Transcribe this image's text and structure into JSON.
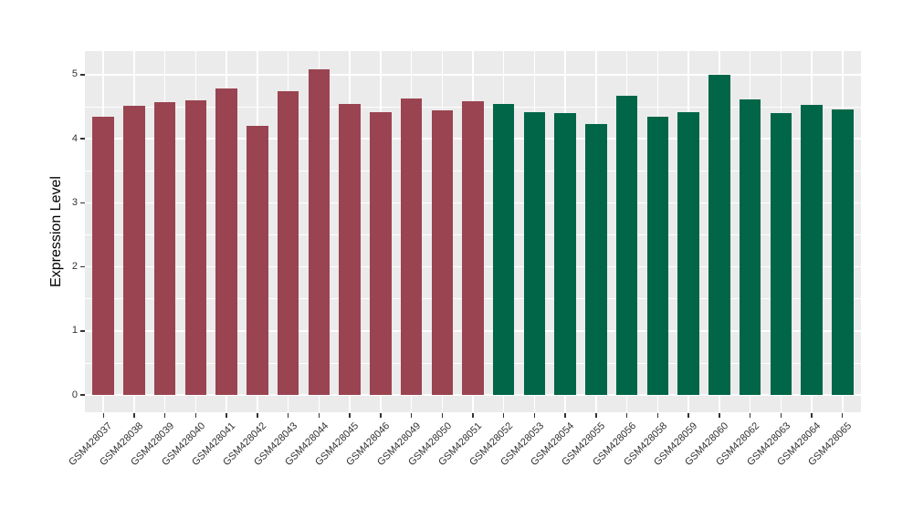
{
  "chart_data": {
    "type": "bar",
    "title": "",
    "xlabel": "",
    "ylabel": "Expression Level",
    "ylim": [
      0,
      5
    ],
    "display_range": {
      "top": 5.37,
      "bottom": -0.27
    },
    "yticks": [
      0,
      1,
      2,
      3,
      4,
      5
    ],
    "grid": "on",
    "legend": "none",
    "panel_bg": "#EBEBEB",
    "grid_color": "#FFFFFF",
    "tick_color": "#333333",
    "series": [
      {
        "name": "series-1",
        "color": "#9A4451",
        "categories": [
          "GSM428037",
          "GSM428038",
          "GSM428039",
          "GSM428040",
          "GSM428041",
          "GSM428042",
          "GSM428043",
          "GSM428044",
          "GSM428045",
          "GSM428046",
          "GSM428049",
          "GSM428050",
          "GSM428051"
        ],
        "values": [
          4.34,
          4.51,
          4.57,
          4.6,
          4.78,
          4.2,
          4.75,
          5.08,
          4.54,
          4.41,
          4.63,
          4.45,
          4.59
        ]
      },
      {
        "name": "series-2",
        "color": "#006647",
        "categories": [
          "GSM428052",
          "GSM428053",
          "GSM428054",
          "GSM428055",
          "GSM428056",
          "GSM428058",
          "GSM428059",
          "GSM428060",
          "GSM428062",
          "GSM428063",
          "GSM428064",
          "GSM428065"
        ],
        "values": [
          4.54,
          4.42,
          4.4,
          4.23,
          4.67,
          4.34,
          4.42,
          5.0,
          4.62,
          4.4,
          4.53,
          4.46
        ]
      }
    ]
  }
}
